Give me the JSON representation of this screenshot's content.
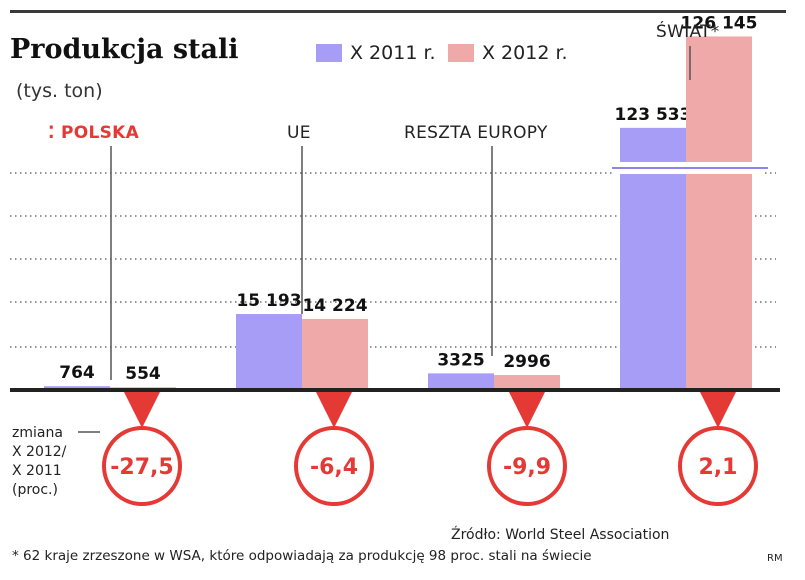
{
  "header": {
    "title": "Produkcja stali",
    "subtitle": "(tys. ton)"
  },
  "legend": {
    "items": [
      {
        "label": "X 2011 r.",
        "color": "#a79cf6"
      },
      {
        "label": "X 2012 r.",
        "color": "#f0a9a9"
      }
    ]
  },
  "groups": {
    "polska": "POLSKA",
    "ue": "UE",
    "reszta": "RESZTA EUROPY",
    "swiat": "ŚWIAT*"
  },
  "change": {
    "label_lines": [
      "zmiana",
      "X 2012/",
      "X 2011",
      "(proc.)"
    ],
    "values": [
      "-27,5",
      "-6,4",
      "-9,9",
      "2,1"
    ]
  },
  "footer": {
    "source": "Źródło: World Steel Association",
    "footnote": "* 62 kraje zrzeszone w WSA, które odpowiadają za produkcję 98 proc. stali na świecie",
    "credit": "RM"
  },
  "colors": {
    "series_2011": "#a79cf6",
    "series_2012": "#f0a9a9",
    "accent": "#e53935",
    "axis": "#222222"
  },
  "chart_data": {
    "type": "bar",
    "title": "Produkcja stali",
    "subtitle": "(tys. ton)",
    "categories": [
      "POLSKA",
      "UE",
      "RESZTA EUROPY",
      "ŚWIAT*"
    ],
    "series": [
      {
        "name": "X 2011 r.",
        "values": [
          764,
          15193,
          3325,
          123533
        ],
        "labels": [
          "764",
          "15 193",
          "3325",
          "123 533"
        ]
      },
      {
        "name": "X 2012 r.",
        "values": [
          554,
          14224,
          2996,
          126145
        ],
        "labels": [
          "554",
          "14 224",
          "2996",
          "126 145"
        ]
      }
    ],
    "change_pct": [
      -27.5,
      -6.4,
      -9.9,
      2.1
    ],
    "axis_break": true,
    "grid": true,
    "legend_position": "top"
  }
}
